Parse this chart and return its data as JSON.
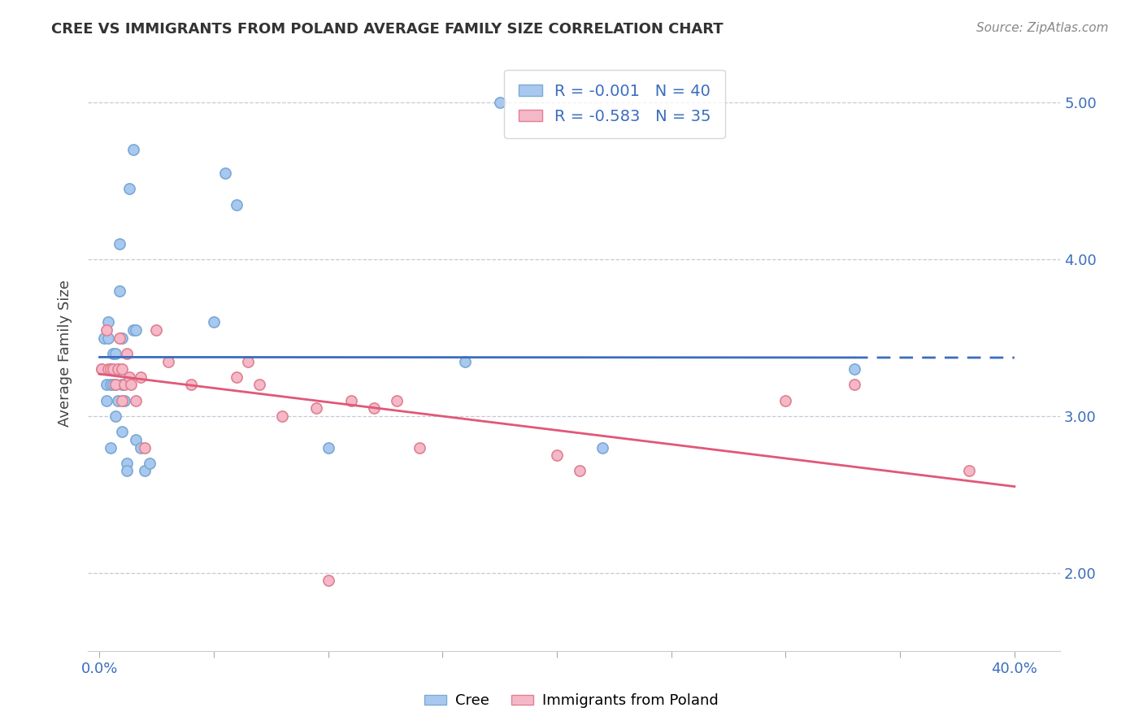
{
  "title": "CREE VS IMMIGRANTS FROM POLAND AVERAGE FAMILY SIZE CORRELATION CHART",
  "source": "Source: ZipAtlas.com",
  "ylabel": "Average Family Size",
  "ylim": [
    1.5,
    5.3
  ],
  "xlim": [
    -0.005,
    0.42
  ],
  "yticks": [
    2.0,
    3.0,
    4.0,
    5.0
  ],
  "background_color": "#ffffff",
  "grid_color": "#c8c8d8",
  "cree_color": "#a8c8f0",
  "cree_edge_color": "#7baad4",
  "poland_color": "#f5b8c8",
  "poland_edge_color": "#e08090",
  "trendline_cree_color": "#3a6dbf",
  "trendline_poland_color": "#e05878",
  "legend_text_color": "#3a6dbf",
  "cree_R": "-0.001",
  "cree_N": "40",
  "poland_R": "-0.583",
  "poland_N": "35",
  "cree_x": [
    0.001,
    0.002,
    0.003,
    0.003,
    0.004,
    0.004,
    0.005,
    0.005,
    0.005,
    0.006,
    0.006,
    0.007,
    0.007,
    0.007,
    0.008,
    0.008,
    0.009,
    0.009,
    0.01,
    0.01,
    0.01,
    0.011,
    0.012,
    0.012,
    0.013,
    0.015,
    0.015,
    0.016,
    0.016,
    0.018,
    0.02,
    0.022,
    0.05,
    0.055,
    0.06,
    0.1,
    0.16,
    0.175,
    0.22,
    0.33
  ],
  "cree_y": [
    3.3,
    3.5,
    3.2,
    3.1,
    3.6,
    3.5,
    3.3,
    3.2,
    2.8,
    3.4,
    3.2,
    3.4,
    3.2,
    3.0,
    3.3,
    3.1,
    4.1,
    3.8,
    3.5,
    3.2,
    2.9,
    3.1,
    2.7,
    2.65,
    4.45,
    4.7,
    3.55,
    3.55,
    2.85,
    2.8,
    2.65,
    2.7,
    3.6,
    4.55,
    4.35,
    2.8,
    3.35,
    5.0,
    2.8,
    3.3
  ],
  "poland_x": [
    0.001,
    0.003,
    0.004,
    0.005,
    0.006,
    0.007,
    0.008,
    0.009,
    0.01,
    0.01,
    0.011,
    0.012,
    0.013,
    0.014,
    0.016,
    0.018,
    0.02,
    0.025,
    0.03,
    0.04,
    0.06,
    0.065,
    0.07,
    0.08,
    0.095,
    0.1,
    0.11,
    0.12,
    0.13,
    0.14,
    0.2,
    0.21,
    0.3,
    0.33,
    0.38
  ],
  "poland_y": [
    3.3,
    3.55,
    3.3,
    3.3,
    3.3,
    3.2,
    3.3,
    3.5,
    3.3,
    3.1,
    3.2,
    3.4,
    3.25,
    3.2,
    3.1,
    3.25,
    2.8,
    3.55,
    3.35,
    3.2,
    3.25,
    3.35,
    3.2,
    3.0,
    3.05,
    1.95,
    3.1,
    3.05,
    3.1,
    2.8,
    2.75,
    2.65,
    3.1,
    3.2,
    2.65
  ],
  "marker_size": 90,
  "xticks": [
    0.0,
    0.05,
    0.1,
    0.15,
    0.2,
    0.25,
    0.3,
    0.35,
    0.4
  ],
  "xtick_labels_show": {
    "0.0": "0.0%",
    "0.4": "40.0%"
  }
}
